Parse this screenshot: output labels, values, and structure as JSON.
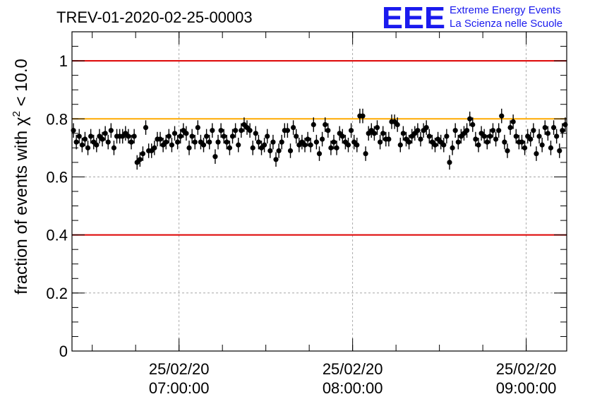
{
  "title": "TREV-01-2020-02-25-00003",
  "logo": {
    "letters": "EEE",
    "line1": "Extreme Energy Events",
    "line2": "La Scienza nelle Scuole"
  },
  "colors": {
    "threshold_red": "#dd0000",
    "threshold_orange": "#ffaa00",
    "marker": "#000000",
    "logo_blue": "#1a1aee"
  },
  "chart_data": {
    "type": "scatter",
    "title": "TREV-01-2020-02-25-00003",
    "ylabel_main": "fraction of events with ",
    "ylabel_chi": "χ",
    "ylabel_sup": "2",
    "ylabel_tail": " < 10.0",
    "xlabel": "",
    "ylim": [
      0,
      1.1
    ],
    "xlim_minutes": [
      -37,
      134
    ],
    "x_ticks": [
      {
        "minute": 0,
        "date": "25/02/20",
        "time": "07:00:00"
      },
      {
        "minute": 60,
        "date": "25/02/20",
        "time": "08:00:00"
      },
      {
        "minute": 120,
        "date": "25/02/20",
        "time": "09:00:00"
      }
    ],
    "y_ticks": [
      "0",
      "0.2",
      "0.4",
      "0.6",
      "0.8",
      "1"
    ],
    "y_tick_values": [
      0,
      0.2,
      0.4,
      0.6,
      0.8,
      1
    ],
    "grid": true,
    "reference_lines": [
      {
        "y": 1.0,
        "color": "#dd0000"
      },
      {
        "y": 0.8,
        "color": "#ffaa00"
      },
      {
        "y": 0.4,
        "color": "#dd0000"
      }
    ],
    "error_bar": 0.025,
    "points": [
      [
        -36.5,
        0.76
      ],
      [
        -35.5,
        0.72
      ],
      [
        -34.5,
        0.74
      ],
      [
        -33.5,
        0.71
      ],
      [
        -32.5,
        0.73
      ],
      [
        -31.5,
        0.7
      ],
      [
        -30.5,
        0.74
      ],
      [
        -29.5,
        0.72
      ],
      [
        -28.5,
        0.71
      ],
      [
        -27.5,
        0.74
      ],
      [
        -26.5,
        0.73
      ],
      [
        -25.5,
        0.75
      ],
      [
        -24.5,
        0.72
      ],
      [
        -23.5,
        0.76
      ],
      [
        -22.5,
        0.7
      ],
      [
        -21.5,
        0.74
      ],
      [
        -20.5,
        0.74
      ],
      [
        -19.5,
        0.74
      ],
      [
        -18.5,
        0.75
      ],
      [
        -17.5,
        0.74
      ],
      [
        -16.5,
        0.72
      ],
      [
        -15.5,
        0.74
      ],
      [
        -14.5,
        0.65
      ],
      [
        -13.5,
        0.66
      ],
      [
        -12.5,
        0.68
      ],
      [
        -11.5,
        0.77
      ],
      [
        -10.5,
        0.69
      ],
      [
        -9.5,
        0.69
      ],
      [
        -8.5,
        0.7
      ],
      [
        -7.5,
        0.73
      ],
      [
        -6.5,
        0.73
      ],
      [
        -5.5,
        0.71
      ],
      [
        -4.5,
        0.72
      ],
      [
        -3.5,
        0.74
      ],
      [
        -2.5,
        0.71
      ],
      [
        -1.5,
        0.75
      ],
      [
        -0.5,
        0.72
      ],
      [
        0.5,
        0.74
      ],
      [
        1.5,
        0.76
      ],
      [
        2.5,
        0.75
      ],
      [
        3.5,
        0.7
      ],
      [
        4.5,
        0.74
      ],
      [
        5.5,
        0.72
      ],
      [
        6.5,
        0.77
      ],
      [
        7.5,
        0.72
      ],
      [
        8.5,
        0.71
      ],
      [
        9.5,
        0.74
      ],
      [
        10.5,
        0.72
      ],
      [
        11.5,
        0.76
      ],
      [
        12.5,
        0.67
      ],
      [
        13.5,
        0.72
      ],
      [
        14.5,
        0.76
      ],
      [
        15.5,
        0.74
      ],
      [
        16.5,
        0.72
      ],
      [
        17.5,
        0.7
      ],
      [
        18.5,
        0.74
      ],
      [
        19.5,
        0.76
      ],
      [
        20.5,
        0.71
      ],
      [
        21.5,
        0.76
      ],
      [
        22.5,
        0.78
      ],
      [
        23.5,
        0.77
      ],
      [
        24.5,
        0.76
      ],
      [
        25.5,
        0.7
      ],
      [
        26.5,
        0.75
      ],
      [
        27.5,
        0.72
      ],
      [
        28.5,
        0.7
      ],
      [
        29.5,
        0.71
      ],
      [
        30.5,
        0.74
      ],
      [
        31.5,
        0.69
      ],
      [
        32.5,
        0.72
      ],
      [
        33.5,
        0.66
      ],
      [
        34.5,
        0.69
      ],
      [
        35.5,
        0.72
      ],
      [
        36.5,
        0.76
      ],
      [
        37.5,
        0.76
      ],
      [
        38.5,
        0.69
      ],
      [
        39.5,
        0.77
      ],
      [
        40.5,
        0.74
      ],
      [
        41.5,
        0.71
      ],
      [
        42.5,
        0.72
      ],
      [
        43.5,
        0.71
      ],
      [
        44.5,
        0.73
      ],
      [
        45.5,
        0.71
      ],
      [
        46.5,
        0.78
      ],
      [
        47.5,
        0.72
      ],
      [
        48.5,
        0.68
      ],
      [
        49.5,
        0.73
      ],
      [
        50.5,
        0.78
      ],
      [
        51.5,
        0.76
      ],
      [
        52.5,
        0.7
      ],
      [
        53.5,
        0.72
      ],
      [
        54.5,
        0.7
      ],
      [
        55.5,
        0.75
      ],
      [
        56.5,
        0.74
      ],
      [
        57.5,
        0.72
      ],
      [
        58.5,
        0.71
      ],
      [
        59.5,
        0.76
      ],
      [
        60.5,
        0.72
      ],
      [
        61.5,
        0.71
      ],
      [
        62.5,
        0.81
      ],
      [
        63.5,
        0.81
      ],
      [
        64.5,
        0.68
      ],
      [
        65.5,
        0.75
      ],
      [
        66.5,
        0.76
      ],
      [
        67.5,
        0.75
      ],
      [
        68.5,
        0.77
      ],
      [
        69.5,
        0.72
      ],
      [
        70.5,
        0.75
      ],
      [
        71.5,
        0.73
      ],
      [
        72.5,
        0.73
      ],
      [
        73.5,
        0.79
      ],
      [
        74.5,
        0.79
      ],
      [
        75.5,
        0.78
      ],
      [
        76.5,
        0.71
      ],
      [
        77.5,
        0.75
      ],
      [
        78.5,
        0.73
      ],
      [
        79.5,
        0.72
      ],
      [
        80.5,
        0.74
      ],
      [
        81.5,
        0.75
      ],
      [
        82.5,
        0.76
      ],
      [
        83.5,
        0.73
      ],
      [
        84.5,
        0.76
      ],
      [
        85.5,
        0.77
      ],
      [
        86.5,
        0.74
      ],
      [
        87.5,
        0.72
      ],
      [
        88.5,
        0.71
      ],
      [
        89.5,
        0.73
      ],
      [
        90.5,
        0.72
      ],
      [
        91.5,
        0.71
      ],
      [
        92.5,
        0.74
      ],
      [
        93.5,
        0.65
      ],
      [
        94.5,
        0.7
      ],
      [
        95.5,
        0.76
      ],
      [
        96.5,
        0.72
      ],
      [
        97.5,
        0.74
      ],
      [
        98.5,
        0.75
      ],
      [
        99.5,
        0.76
      ],
      [
        100.5,
        0.8
      ],
      [
        101.5,
        0.78
      ],
      [
        102.5,
        0.73
      ],
      [
        103.5,
        0.71
      ],
      [
        104.5,
        0.75
      ],
      [
        105.5,
        0.74
      ],
      [
        106.5,
        0.72
      ],
      [
        107.5,
        0.74
      ],
      [
        108.5,
        0.76
      ],
      [
        109.5,
        0.73
      ],
      [
        110.5,
        0.76
      ],
      [
        111.5,
        0.81
      ],
      [
        112.5,
        0.72
      ],
      [
        113.5,
        0.69
      ],
      [
        114.5,
        0.77
      ],
      [
        115.5,
        0.79
      ],
      [
        116.5,
        0.74
      ],
      [
        117.5,
        0.72
      ],
      [
        118.5,
        0.72
      ],
      [
        119.5,
        0.7
      ],
      [
        120.5,
        0.74
      ],
      [
        121.5,
        0.73
      ],
      [
        122.5,
        0.76
      ],
      [
        123.5,
        0.68
      ],
      [
        124.5,
        0.74
      ],
      [
        125.5,
        0.71
      ],
      [
        126.5,
        0.77
      ],
      [
        127.5,
        0.75
      ],
      [
        128.5,
        0.7
      ],
      [
        129.5,
        0.77
      ],
      [
        130.5,
        0.74
      ],
      [
        131.5,
        0.69
      ],
      [
        132.5,
        0.76
      ],
      [
        133.5,
        0.78
      ]
    ]
  }
}
